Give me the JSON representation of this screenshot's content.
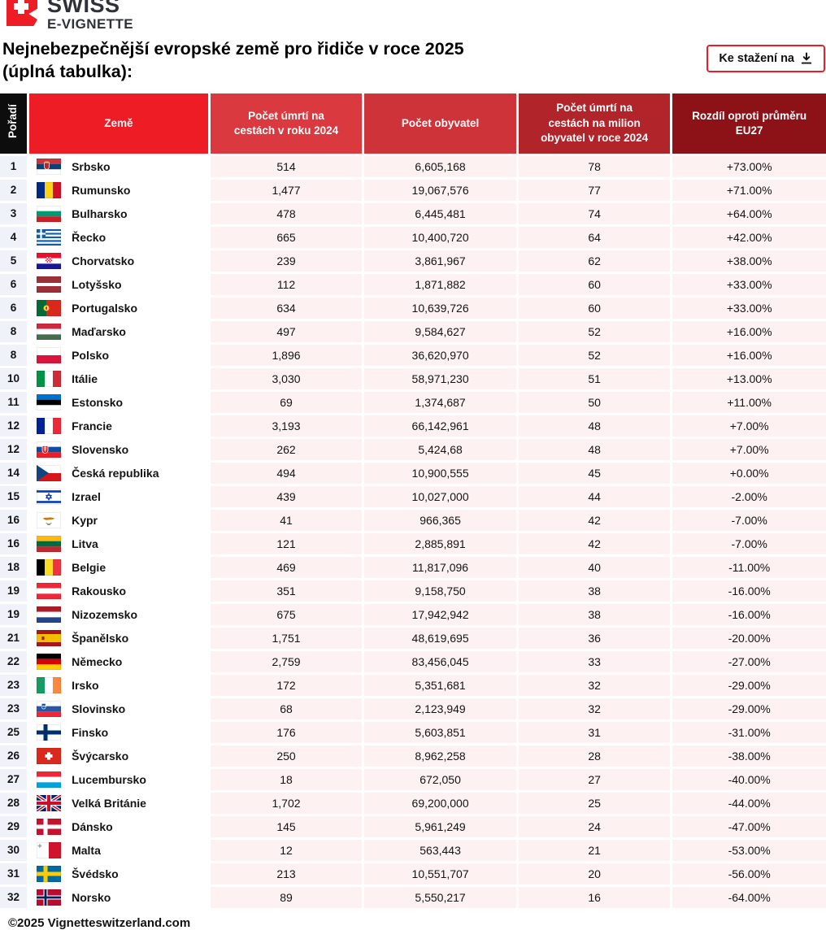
{
  "brand": {
    "name_line1": "SWISS",
    "name_line2": "E-VIGNETTE",
    "badge_icon": "swiss-cross-flag-icon"
  },
  "title": "Nejnebezpečnější evropské země pro řidiče v roce 2025\n(úplná tabulka):",
  "toolbar": {
    "download_label": "Ke stažení na",
    "download_icon": "download-icon"
  },
  "table": {
    "columns": [
      "Pořadí",
      "Země",
      "Počet úmrtí na\ncestách v roku 2024",
      "Počet obyvatel",
      "Počet úmrtí na\ncestách na milion\nobyvatel v roce 2024",
      "Rozdíl oproti průměru\nEU27"
    ],
    "rows": [
      {
        "rank": "1",
        "country": "Srbsko",
        "flag": "rs",
        "deaths": "514",
        "population": "6,605,168",
        "per_million": "78",
        "diff": "+73.00%"
      },
      {
        "rank": "2",
        "country": "Rumunsko",
        "flag": "ro",
        "deaths": "1,477",
        "population": "19,067,576",
        "per_million": "77",
        "diff": "+71.00%"
      },
      {
        "rank": "3",
        "country": "Bulharsko",
        "flag": "bg",
        "deaths": "478",
        "population": "6,445,481",
        "per_million": "74",
        "diff": "+64.00%"
      },
      {
        "rank": "4",
        "country": "Řecko",
        "flag": "gr",
        "deaths": "665",
        "population": "10,400,720",
        "per_million": "64",
        "diff": "+42.00%"
      },
      {
        "rank": "5",
        "country": "Chorvatsko",
        "flag": "hr",
        "deaths": "239",
        "population": "3,861,967",
        "per_million": "62",
        "diff": "+38.00%"
      },
      {
        "rank": "6",
        "country": "Lotyšsko",
        "flag": "lv",
        "deaths": "112",
        "population": "1,871,882",
        "per_million": "60",
        "diff": "+33.00%"
      },
      {
        "rank": "6",
        "country": "Portugalsko",
        "flag": "pt",
        "deaths": "634",
        "population": "10,639,726",
        "per_million": "60",
        "diff": "+33.00%"
      },
      {
        "rank": "8",
        "country": "Maďarsko",
        "flag": "hu",
        "deaths": "497",
        "population": "9,584,627",
        "per_million": "52",
        "diff": "+16.00%"
      },
      {
        "rank": "8",
        "country": "Polsko",
        "flag": "pl",
        "deaths": "1,896",
        "population": "36,620,970",
        "per_million": "52",
        "diff": "+16.00%"
      },
      {
        "rank": "10",
        "country": "Itálie",
        "flag": "it",
        "deaths": "3,030",
        "population": "58,971,230",
        "per_million": "51",
        "diff": "+13.00%"
      },
      {
        "rank": "11",
        "country": "Estonsko",
        "flag": "ee",
        "deaths": "69",
        "population": "1,374,687",
        "per_million": "50",
        "diff": "+11.00%"
      },
      {
        "rank": "12",
        "country": "Francie",
        "flag": "fr",
        "deaths": "3,193",
        "population": "66,142,961",
        "per_million": "48",
        "diff": "+7.00%"
      },
      {
        "rank": "12",
        "country": "Slovensko",
        "flag": "sk",
        "deaths": "262",
        "population": "5,424,68",
        "per_million": "48",
        "diff": "+7.00%"
      },
      {
        "rank": "14",
        "country": "Česká republika",
        "flag": "cz",
        "deaths": "494",
        "population": "10,900,555",
        "per_million": "45",
        "diff": "+0.00%"
      },
      {
        "rank": "15",
        "country": "Izrael",
        "flag": "il",
        "deaths": "439",
        "population": "10,027,000",
        "per_million": "44",
        "diff": "-2.00%"
      },
      {
        "rank": "16",
        "country": "Kypr",
        "flag": "cy",
        "deaths": "41",
        "population": "966,365",
        "per_million": "42",
        "diff": "-7.00%"
      },
      {
        "rank": "16",
        "country": "Litva",
        "flag": "lt",
        "deaths": "121",
        "population": "2,885,891",
        "per_million": "42",
        "diff": "-7.00%"
      },
      {
        "rank": "18",
        "country": "Belgie",
        "flag": "be",
        "deaths": "469",
        "population": "11,817,096",
        "per_million": "40",
        "diff": "-11.00%"
      },
      {
        "rank": "19",
        "country": "Rakousko",
        "flag": "at",
        "deaths": "351",
        "population": "9,158,750",
        "per_million": "38",
        "diff": "-16.00%"
      },
      {
        "rank": "19",
        "country": "Nizozemsko",
        "flag": "nl",
        "deaths": "675",
        "population": "17,942,942",
        "per_million": "38",
        "diff": "-16.00%"
      },
      {
        "rank": "21",
        "country": "Španělsko",
        "flag": "es",
        "deaths": "1,751",
        "population": "48,619,695",
        "per_million": "36",
        "diff": "-20.00%"
      },
      {
        "rank": "22",
        "country": "Německo",
        "flag": "de",
        "deaths": "2,759",
        "population": "83,456,045",
        "per_million": "33",
        "diff": "-27.00%"
      },
      {
        "rank": "23",
        "country": "Irsko",
        "flag": "ie",
        "deaths": "172",
        "population": "5,351,681",
        "per_million": "32",
        "diff": "-29.00%"
      },
      {
        "rank": "23",
        "country": "Slovinsko",
        "flag": "si",
        "deaths": "68",
        "population": "2,123,949",
        "per_million": "32",
        "diff": "-29.00%"
      },
      {
        "rank": "25",
        "country": "Finsko",
        "flag": "fi",
        "deaths": "176",
        "population": "5,603,851",
        "per_million": "31",
        "diff": "-31.00%"
      },
      {
        "rank": "26",
        "country": "Švýcarsko",
        "flag": "ch",
        "deaths": "250",
        "population": "8,962,258",
        "per_million": "28",
        "diff": "-38.00%"
      },
      {
        "rank": "27",
        "country": "Lucembursko",
        "flag": "lu",
        "deaths": "18",
        "population": "672,050",
        "per_million": "27",
        "diff": "-40.00%"
      },
      {
        "rank": "28",
        "country": "Velká Británie",
        "flag": "gb",
        "deaths": "1,702",
        "population": "69,200,000",
        "per_million": "25",
        "diff": "-44.00%"
      },
      {
        "rank": "29",
        "country": "Dánsko",
        "flag": "dk",
        "deaths": "145",
        "population": "5,961,249",
        "per_million": "24",
        "diff": "-47.00%"
      },
      {
        "rank": "30",
        "country": "Malta",
        "flag": "mt",
        "deaths": "12",
        "population": "563,443",
        "per_million": "21",
        "diff": "-53.00%"
      },
      {
        "rank": "31",
        "country": "Švédsko",
        "flag": "se",
        "deaths": "213",
        "population": "10,551,707",
        "per_million": "20",
        "diff": "-56.00%"
      },
      {
        "rank": "32",
        "country": "Norsko",
        "flag": "no",
        "deaths": "89",
        "population": "5,550,217",
        "per_million": "16",
        "diff": "-64.00%"
      }
    ]
  },
  "footer": {
    "copyright": "©2025 Vignetteswitzerland.com"
  },
  "colors": {
    "brand_red": "#ee1c25",
    "col_rank_bg": "#0d0d0d",
    "col_country_bg": "#ee1c25",
    "col_deaths_bg": "#da3a3f",
    "col_population_bg": "#cd3338",
    "col_permillion_bg": "#b0242a",
    "col_diff_bg": "#8c1218",
    "cell_pink": "#fdf1f1",
    "cell_rank": "#eff2f8"
  }
}
